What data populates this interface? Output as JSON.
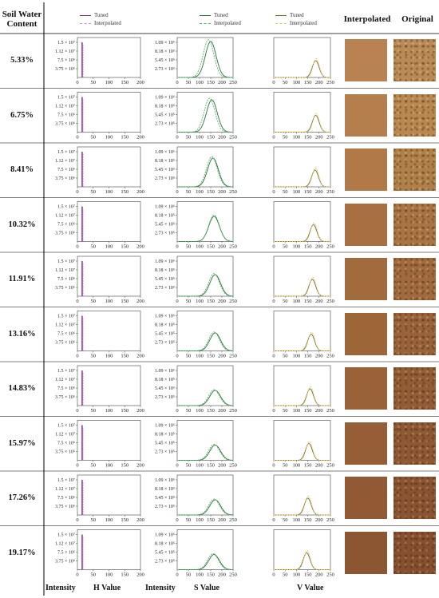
{
  "table": {
    "col_soil_l1": "Soil Water",
    "col_soil_l2": "Content",
    "col_interpolated": "Interpolated",
    "col_original": "Original",
    "foot_intensity": "Intensity",
    "foot_h": "H Value",
    "foot_s": "S Value",
    "foot_v": "V Value"
  },
  "legend": {
    "tuned": "Tuned",
    "interpolated": "Interpolated"
  },
  "colors": {
    "h_tuned": "#7a2d8c",
    "h_interp": "#c58fc7",
    "s_tuned": "#2d6e3a",
    "s_interp": "#58b06a",
    "v_tuned": "#6b6b3a",
    "v_interp": "#e8c65a"
  },
  "chart_data": {
    "type": "line",
    "rows": [
      {
        "swc": "5.33%",
        "s_tuned_peak": 150,
        "s_interp_peak": 140,
        "v_peak": 185,
        "interp_color": "#b98252",
        "orig_color": "#b98a55"
      },
      {
        "swc": "6.75%",
        "s_tuned_peak": 155,
        "s_interp_peak": 145,
        "v_peak": 185,
        "interp_color": "#b57e4d",
        "orig_color": "#b98750"
      },
      {
        "swc": "8.41%",
        "s_tuned_peak": 160,
        "s_interp_peak": 155,
        "v_peak": 182,
        "interp_color": "#b27948",
        "orig_color": "#b0804a"
      },
      {
        "swc": "10.32%",
        "s_tuned_peak": 165,
        "s_interp_peak": 165,
        "v_peak": 175,
        "interp_color": "#a87042",
        "orig_color": "#a97444"
      },
      {
        "swc": "11.91%",
        "s_tuned_peak": 170,
        "s_interp_peak": 165,
        "v_peak": 170,
        "interp_color": "#a26b3e",
        "orig_color": "#a06a3e"
      },
      {
        "swc": "13.16%",
        "s_tuned_peak": 170,
        "s_interp_peak": 165,
        "v_peak": 165,
        "interp_color": "#9d6639",
        "orig_color": "#98623a"
      },
      {
        "swc": "14.83%",
        "s_tuned_peak": 170,
        "s_interp_peak": 165,
        "v_peak": 160,
        "interp_color": "#996238",
        "orig_color": "#925c36"
      },
      {
        "swc": "15.97%",
        "s_tuned_peak": 170,
        "s_interp_peak": 165,
        "v_peak": 155,
        "interp_color": "#955e36",
        "orig_color": "#8e5834"
      },
      {
        "swc": "17.26%",
        "s_tuned_peak": 170,
        "s_interp_peak": 165,
        "v_peak": 150,
        "interp_color": "#915a34",
        "orig_color": "#8a5432"
      },
      {
        "swc": "19.17%",
        "s_tuned_peak": 165,
        "s_interp_peak": 160,
        "v_peak": 145,
        "interp_color": "#8c5632",
        "orig_color": "#865030"
      }
    ],
    "h_panel": {
      "xlim": [
        0,
        200
      ],
      "xticks": [
        "0",
        "50",
        "100",
        "150",
        "200"
      ],
      "yticks": [
        "1.5 × 10⁷",
        "1.12 × 10⁷",
        "7.5 × 10⁶",
        "3.75 × 10⁶"
      ],
      "peak_x": 15
    },
    "s_panel": {
      "xlim": [
        0,
        250
      ],
      "xticks": [
        "0",
        "50",
        "100",
        "150",
        "200",
        "250"
      ],
      "yticks": [
        "1.09 × 10⁶",
        "8.18 × 10⁵",
        "5.45 × 10⁵",
        "2.73 × 10⁵"
      ]
    },
    "v_panel": {
      "xlim": [
        0,
        250
      ],
      "xticks": [
        "0",
        "50",
        "100",
        "150",
        "200",
        "250"
      ]
    }
  }
}
